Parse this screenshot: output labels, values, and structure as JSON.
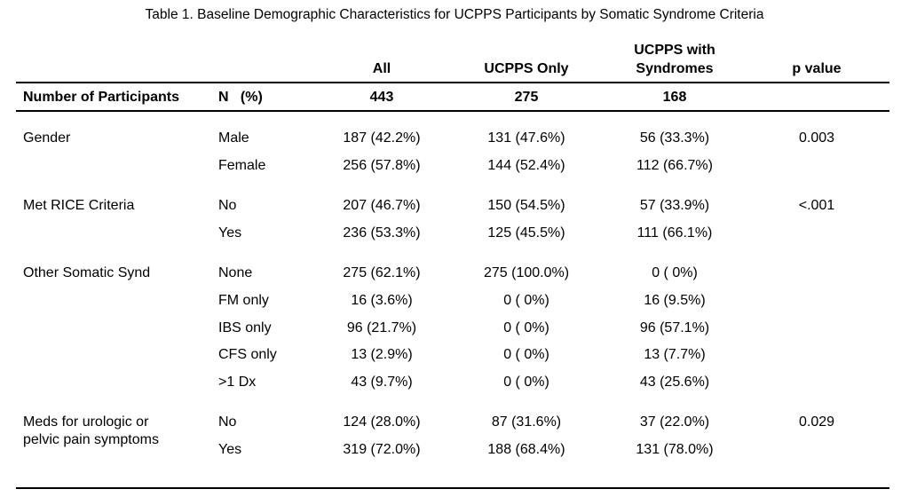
{
  "caption": "Table 1. Baseline Demographic Characteristics for UCPPS Participants by Somatic Syndrome Criteria",
  "columns": {
    "all": "All",
    "ucpps_only": "UCPPS Only",
    "ucpps_with_line1": "UCPPS with",
    "ucpps_with_line2": "Syndromes",
    "p_value": "p value"
  },
  "participants": {
    "label": "Number of Participants",
    "n_label": "N   (%)",
    "all": "443",
    "ucpps_only": "275",
    "ucpps_with": "168"
  },
  "sections": [
    {
      "label": "Gender",
      "label2": "",
      "p": "0.003",
      "rows": [
        {
          "sub": "Male",
          "all": "187 (42.2%)",
          "only": "131 (47.6%)",
          "with": "56 (33.3%)"
        },
        {
          "sub": "Female",
          "all": "256 (57.8%)",
          "only": "144 (52.4%)",
          "with": "112 (66.7%)"
        }
      ]
    },
    {
      "label": "Met RICE Criteria",
      "label2": "",
      "p": "<.001",
      "rows": [
        {
          "sub": "No",
          "all": "207 (46.7%)",
          "only": "150 (54.5%)",
          "with": "57 (33.9%)"
        },
        {
          "sub": "Yes",
          "all": "236 (53.3%)",
          "only": "125 (45.5%)",
          "with": "111 (66.1%)"
        }
      ]
    },
    {
      "label": "Other Somatic Synd",
      "label2": "",
      "p": "",
      "rows": [
        {
          "sub": "None",
          "all": "275 (62.1%)",
          "only": "275 (100.0%)",
          "with": "0 ( 0%)"
        },
        {
          "sub": "FM only",
          "all": "16 (3.6%)",
          "only": "0 ( 0%)",
          "with": "16 (9.5%)"
        },
        {
          "sub": "IBS only",
          "all": "96 (21.7%)",
          "only": "0 ( 0%)",
          "with": "96 (57.1%)"
        },
        {
          "sub": "CFS only",
          "all": "13 (2.9%)",
          "only": "0 ( 0%)",
          "with": "13 (7.7%)"
        },
        {
          "sub": ">1 Dx",
          "all": "43 (9.7%)",
          "only": "0 ( 0%)",
          "with": "43 (25.6%)"
        }
      ]
    },
    {
      "label": "Meds for urologic or",
      "label2": "pelvic pain symptoms",
      "p": "0.029",
      "rows": [
        {
          "sub": "No",
          "all": "124 (28.0%)",
          "only": "87 (31.6%)",
          "with": "37 (22.0%)"
        },
        {
          "sub": "Yes",
          "all": "319 (72.0%)",
          "only": "188 (68.4%)",
          "with": "131 (78.0%)"
        }
      ]
    }
  ]
}
